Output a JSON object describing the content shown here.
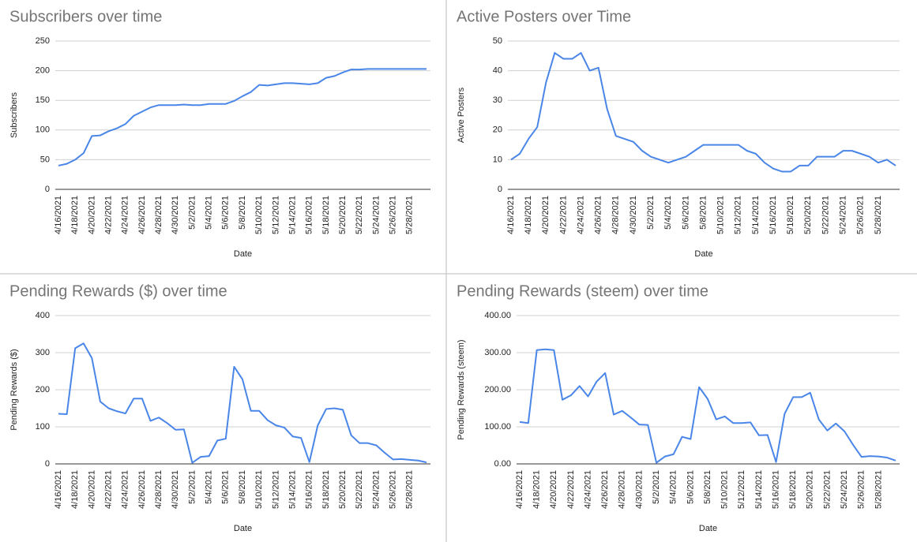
{
  "chart_data": [
    {
      "type": "line",
      "title": "Subscribers over time",
      "x_label": "Date",
      "y_label": "Subscribers",
      "color": "#4a86e8",
      "categories": [
        "4/16/2021",
        null,
        "4/18/2021",
        null,
        "4/20/2021",
        null,
        "4/22/2021",
        null,
        "4/24/2021",
        null,
        "4/26/2021",
        null,
        "4/28/2021",
        null,
        "4/30/2021",
        null,
        "5/2/2021",
        null,
        "5/4/2021",
        null,
        "5/6/2021",
        null,
        "5/8/2021",
        null,
        "5/10/2021",
        null,
        "5/12/2021",
        null,
        "5/14/2021",
        null,
        "5/16/2021",
        null,
        "5/18/2021",
        null,
        "5/20/2021",
        null,
        "5/22/2021",
        null,
        "5/24/2021",
        null,
        "5/26/2021",
        null,
        "5/28/2021",
        null,
        null
      ],
      "values": [
        40,
        43,
        50,
        61,
        90,
        91,
        98,
        103,
        110,
        124,
        131,
        138,
        142,
        142,
        142,
        143,
        142,
        142,
        144,
        144,
        144,
        149,
        157,
        164,
        176,
        175,
        177,
        179,
        179,
        178,
        177,
        179,
        188,
        191,
        197,
        202,
        202,
        203,
        203,
        203,
        203,
        203,
        203,
        203,
        203
      ],
      "ylim": [
        0,
        250
      ],
      "yticks": [
        0,
        50,
        100,
        150,
        200,
        250
      ],
      "grid": true
    },
    {
      "type": "line",
      "title": "Active Posters over Time",
      "x_label": "Date",
      "y_label": "Active Posters",
      "color": "#4a86e8",
      "categories": [
        "4/16/2021",
        null,
        "4/18/2021",
        null,
        "4/20/2021",
        null,
        "4/22/2021",
        null,
        "4/24/2021",
        null,
        "4/26/2021",
        null,
        "4/28/2021",
        null,
        "4/30/2021",
        null,
        "5/2/2021",
        null,
        "5/4/2021",
        null,
        "5/6/2021",
        null,
        "5/8/2021",
        null,
        "5/10/2021",
        null,
        "5/12/2021",
        null,
        "5/14/2021",
        null,
        "5/16/2021",
        null,
        "5/18/2021",
        null,
        "5/20/2021",
        null,
        "5/22/2021",
        null,
        "5/24/2021",
        null,
        "5/26/2021",
        null,
        "5/28/2021",
        null,
        null
      ],
      "values": [
        10,
        12,
        17,
        21,
        36,
        46,
        44,
        44,
        46,
        40,
        41,
        27,
        18,
        17,
        16,
        13,
        11,
        10,
        9,
        10,
        11,
        13,
        15,
        15,
        15,
        15,
        15,
        13,
        12,
        9,
        7,
        6,
        6,
        8,
        8,
        11,
        11,
        11,
        13,
        13,
        12,
        11,
        9,
        10,
        8
      ],
      "ylim": [
        0,
        50
      ],
      "yticks": [
        0,
        10,
        20,
        30,
        40,
        50
      ],
      "grid": true
    },
    {
      "type": "line",
      "title": "Pending Rewards ($) over time",
      "x_label": "Date",
      "y_label": "Pending Rewards ($)",
      "color": "#4a86e8",
      "categories": [
        "4/16/2021",
        null,
        "4/18/2021",
        null,
        "4/20/2021",
        null,
        "4/22/2021",
        null,
        "4/24/2021",
        null,
        "4/26/2021",
        null,
        "4/28/2021",
        null,
        "4/30/2021",
        null,
        "5/2/2021",
        null,
        "5/4/2021",
        null,
        "5/6/2021",
        null,
        "5/8/2021",
        null,
        "5/10/2021",
        null,
        "5/12/2021",
        null,
        "5/14/2021",
        null,
        "5/16/2021",
        null,
        "5/18/2021",
        null,
        "5/20/2021",
        null,
        "5/22/2021",
        null,
        "5/24/2021",
        null,
        "5/26/2021",
        null,
        "5/28/2021",
        null,
        null
      ],
      "values": [
        135,
        134,
        312,
        325,
        285,
        168,
        150,
        142,
        136,
        176,
        176,
        116,
        125,
        110,
        92,
        93,
        3,
        19,
        21,
        63,
        68,
        262,
        228,
        143,
        143,
        118,
        104,
        98,
        74,
        70,
        5,
        104,
        148,
        150,
        146,
        77,
        56,
        56,
        50,
        30,
        12,
        13,
        11,
        9,
        4
      ],
      "ylim": [
        0,
        400
      ],
      "yticks": [
        0,
        100,
        200,
        300,
        400
      ],
      "grid": true
    },
    {
      "type": "line",
      "title": "Pending Rewards (steem) over time",
      "x_label": "Date",
      "y_label": "Pending Rewards (steem)",
      "color": "#4a86e8",
      "categories": [
        "4/16/2021",
        null,
        "4/18/2021",
        null,
        "4/20/2021",
        null,
        "4/22/2021",
        null,
        "4/24/2021",
        null,
        "4/26/2021",
        null,
        "4/28/2021",
        null,
        "4/30/2021",
        null,
        "5/2/2021",
        null,
        "5/4/2021",
        null,
        "5/6/2021",
        null,
        "5/8/2021",
        null,
        "5/10/2021",
        null,
        "5/12/2021",
        null,
        "5/14/2021",
        null,
        "5/16/2021",
        null,
        "5/18/2021",
        null,
        "5/20/2021",
        null,
        "5/22/2021",
        null,
        "5/24/2021",
        null,
        "5/26/2021",
        null,
        "5/28/2021",
        null,
        null
      ],
      "values": [
        113,
        110,
        307,
        309,
        307,
        173,
        185,
        210,
        182,
        222,
        245,
        133,
        143,
        125,
        106,
        105,
        3,
        20,
        26,
        73,
        67,
        207,
        175,
        120,
        128,
        110,
        110,
        112,
        77,
        78,
        5,
        135,
        180,
        180,
        192,
        120,
        90,
        109,
        88,
        52,
        19,
        21,
        20,
        17,
        9
      ],
      "ylim": [
        0,
        400
      ],
      "yticks": [
        {
          "value": 0,
          "label": "0.00"
        },
        {
          "value": 100,
          "label": "100.00"
        },
        {
          "value": 200,
          "label": "200.00"
        },
        {
          "value": 300,
          "label": "300.00"
        },
        {
          "value": 400,
          "label": "400.00"
        }
      ],
      "grid": true
    }
  ]
}
